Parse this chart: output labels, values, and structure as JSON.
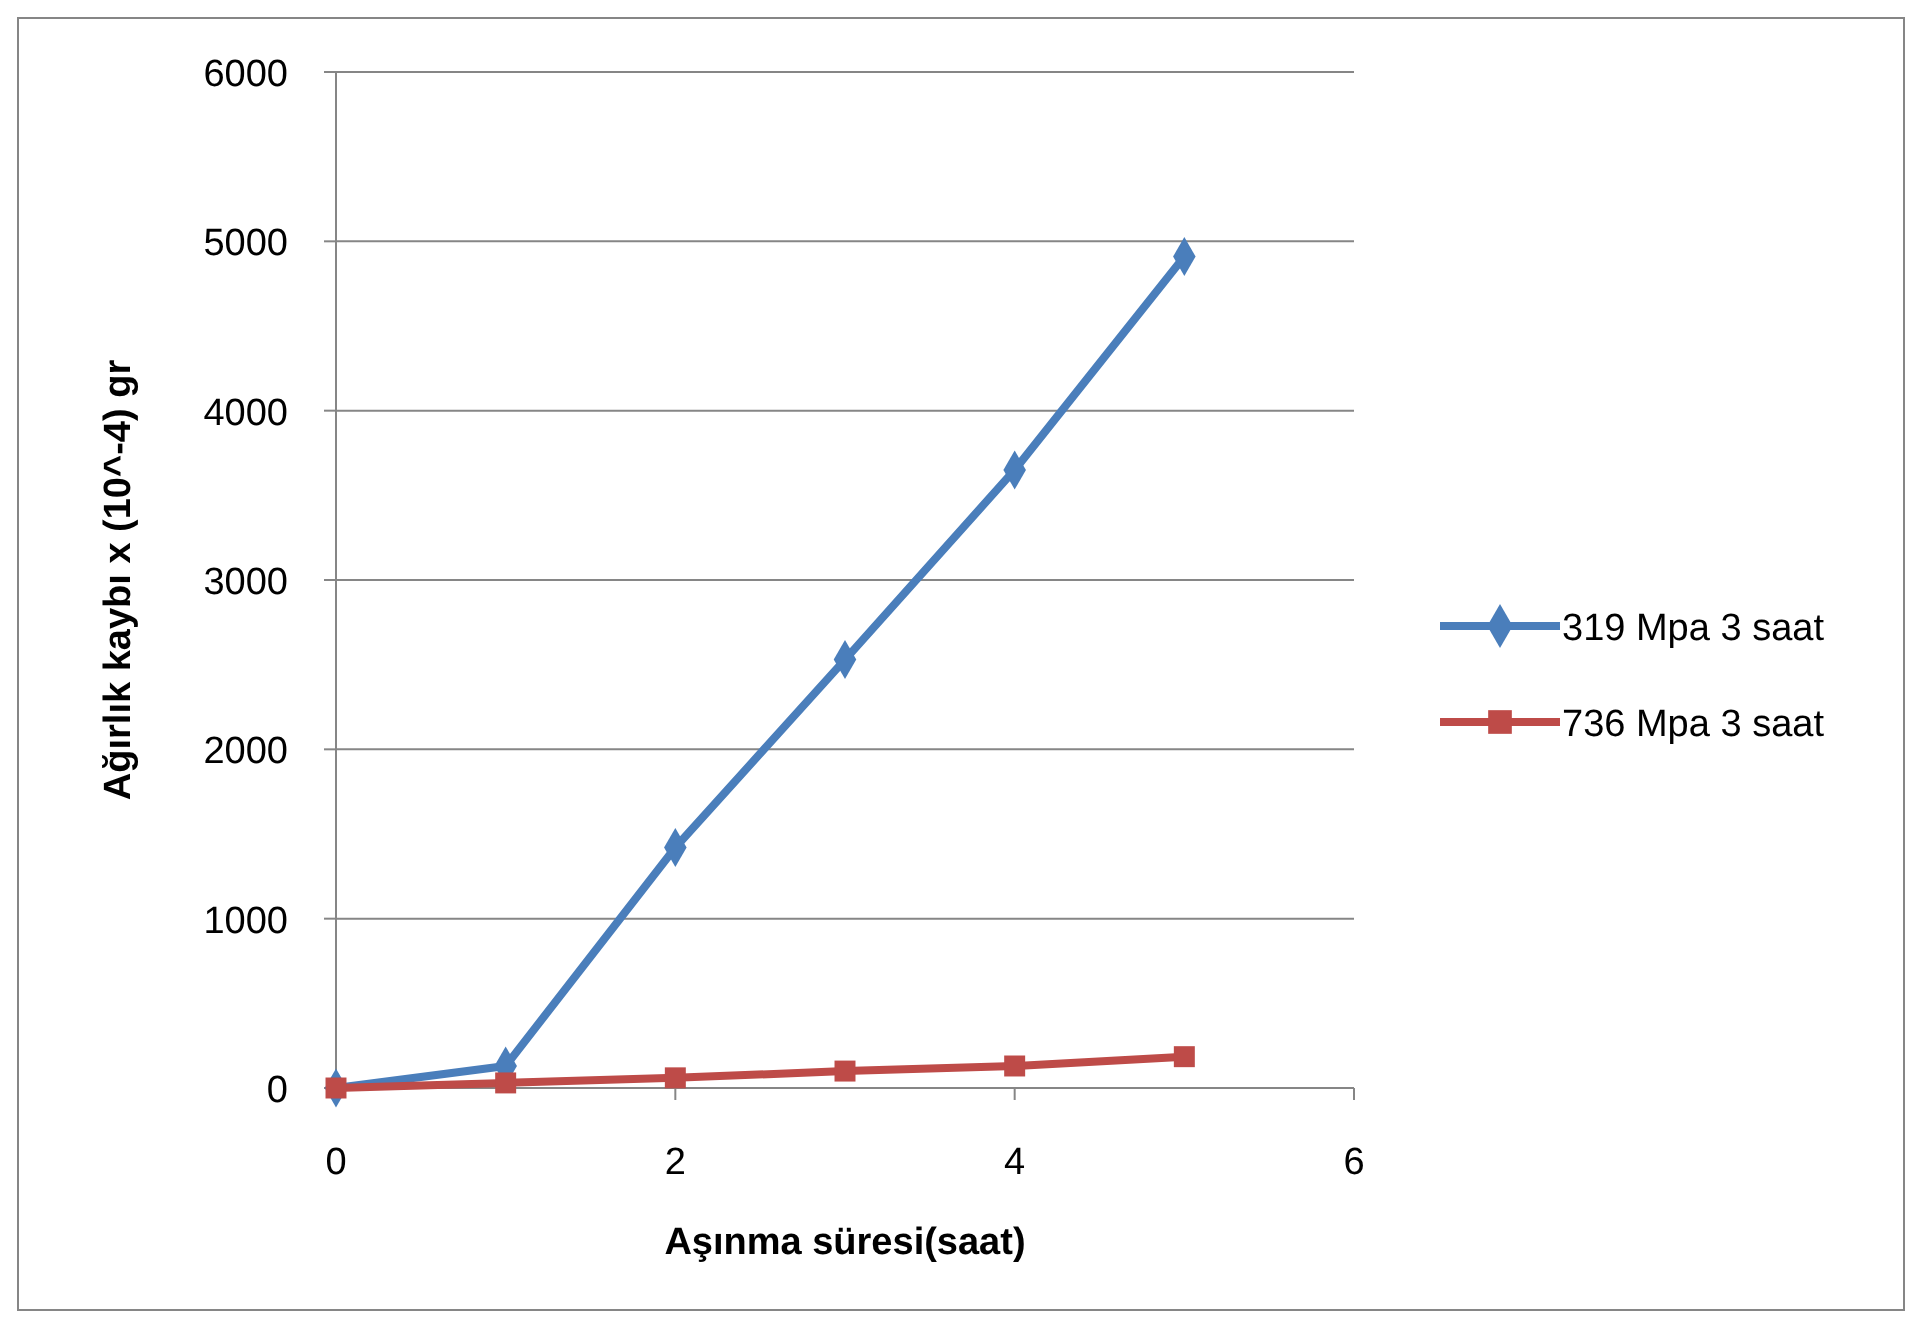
{
  "chart_data": {
    "type": "line",
    "xlabel": "Aşınma süresi(saat)",
    "ylabel": "Ağırlık kaybı x (10^-4) gr",
    "x": [
      0,
      1,
      2,
      3,
      4,
      5
    ],
    "series": [
      {
        "name": "319 Mpa 3 saat",
        "color": "#4a7ebb",
        "marker": "diamond",
        "values": [
          0,
          130,
          1420,
          2530,
          3650,
          4910
        ]
      },
      {
        "name": "736 Mpa 3 saat",
        "color": "#be4b48",
        "marker": "square",
        "values": [
          0,
          30,
          60,
          100,
          130,
          185
        ]
      }
    ],
    "xlim": [
      0,
      6
    ],
    "xticks": [
      0,
      2,
      4,
      6
    ],
    "ylim": [
      0,
      6000
    ],
    "yticks": [
      0,
      1000,
      2000,
      3000,
      4000,
      5000,
      6000
    ],
    "grid": "y",
    "legend": "right",
    "line_style": "solid"
  }
}
